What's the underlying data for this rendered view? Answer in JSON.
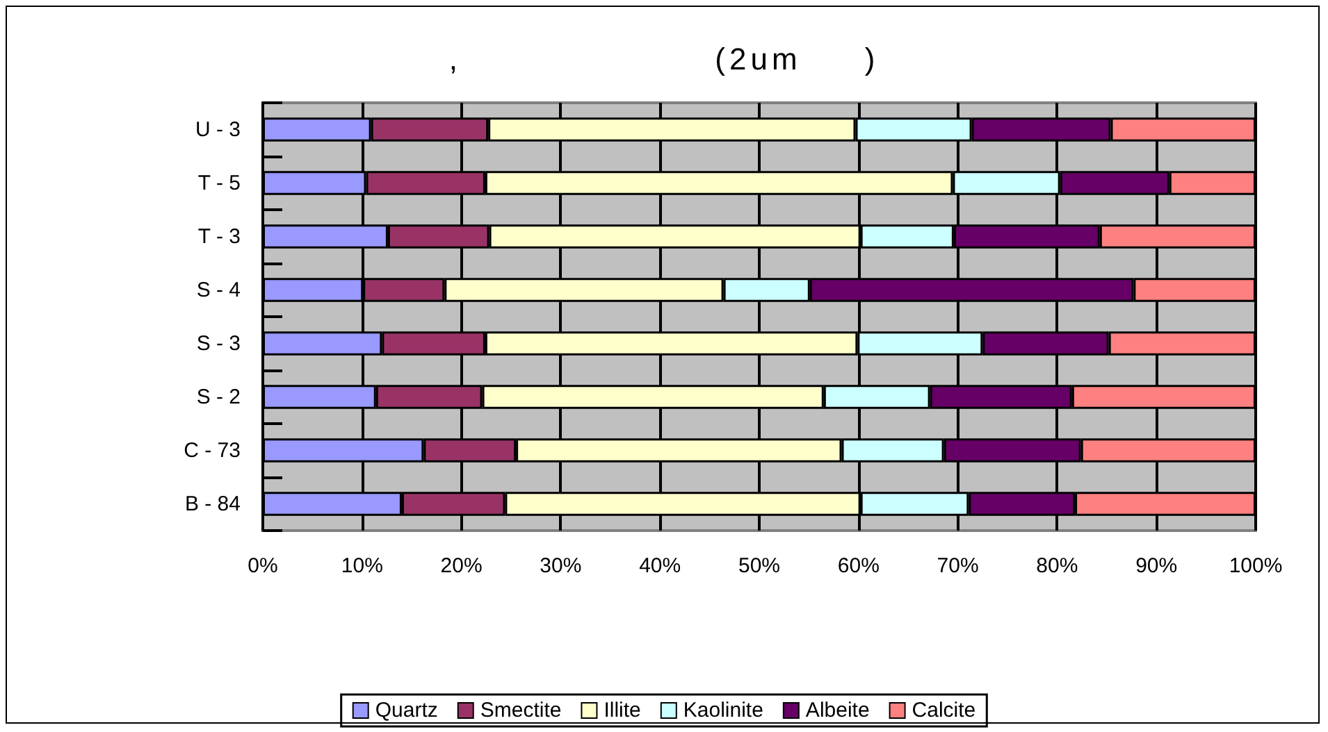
{
  "chart_data": {
    "type": "bar",
    "title": ",                    (2um     )",
    "orientation": "horizontal",
    "stacked": true,
    "categories": [
      "U - 3",
      "T - 5",
      "T - 3",
      "S - 4",
      "S - 3",
      "S - 2",
      "C - 73",
      "B - 84"
    ],
    "series": [
      {
        "name": "Quartz",
        "color": "#9999ff",
        "values": [
          10.9,
          10.4,
          12.6,
          10.1,
          12.0,
          11.4,
          16.2,
          14.0
        ]
      },
      {
        "name": "Smectite",
        "color": "#993366",
        "values": [
          11.8,
          12.0,
          10.2,
          8.2,
          10.4,
          10.7,
          9.3,
          10.4
        ]
      },
      {
        "name": "Illite",
        "color": "#ffffcc",
        "values": [
          37.0,
          47.1,
          37.4,
          28.1,
          37.5,
          34.4,
          32.8,
          35.8
        ]
      },
      {
        "name": "Kaolinite",
        "color": "#ccffff",
        "values": [
          11.7,
          10.8,
          9.4,
          8.7,
          12.6,
          10.7,
          10.3,
          10.9
        ]
      },
      {
        "name": "Albeite",
        "color": "#660066",
        "values": [
          14.0,
          11.0,
          14.7,
          32.6,
          12.7,
          14.3,
          13.8,
          10.7
        ]
      },
      {
        "name": "Calcite",
        "color": "#ff8080",
        "values": [
          14.6,
          8.7,
          15.7,
          12.3,
          14.8,
          18.5,
          17.6,
          18.2
        ]
      }
    ],
    "xlim": [
      0,
      100
    ],
    "xticks": [
      {
        "value": 0,
        "label": "0%"
      },
      {
        "value": 10,
        "label": "10%"
      },
      {
        "value": 20,
        "label": "20%"
      },
      {
        "value": 30,
        "label": "30%"
      },
      {
        "value": 40,
        "label": "40%"
      },
      {
        "value": 50,
        "label": "50%"
      },
      {
        "value": 60,
        "label": "60%"
      },
      {
        "value": 70,
        "label": "70%"
      },
      {
        "value": 80,
        "label": "80%"
      },
      {
        "value": 90,
        "label": "90%"
      },
      {
        "value": 100,
        "label": "100%"
      }
    ],
    "grid": "x",
    "legend": "bottom"
  }
}
